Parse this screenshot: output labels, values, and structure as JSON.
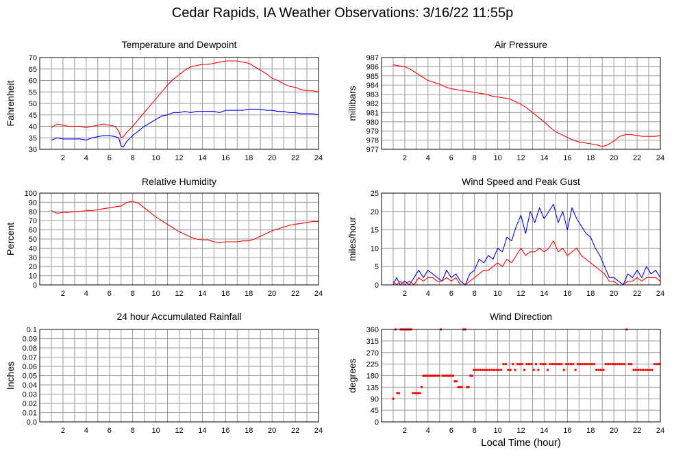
{
  "page": {
    "title": "Cedar Rapids, IA Weather Observations: 3/16/22 11:55p",
    "x_axis_label": "Local Time (hour)"
  },
  "colors": {
    "red": "#ff0000",
    "blue": "#0000ff",
    "grid": "#999999",
    "frame": "#000000"
  },
  "chart_data": [
    {
      "id": "temp",
      "type": "line",
      "title": "Temperature and Dewpoint",
      "ylabel": "Fahrenheit",
      "xlim": [
        0,
        24
      ],
      "ylim": [
        30,
        70
      ],
      "xticks": [
        2,
        4,
        6,
        8,
        10,
        12,
        14,
        16,
        18,
        20,
        22,
        24
      ],
      "yticks": [
        30,
        35,
        40,
        45,
        50,
        55,
        60,
        65,
        70
      ],
      "grid": true,
      "series": [
        {
          "color": "#ff0000",
          "x": [
            1,
            1.5,
            2,
            2.5,
            3,
            3.5,
            4,
            4.5,
            5,
            5.5,
            6,
            6.5,
            6.8,
            7,
            7.2,
            7.5,
            8,
            8.5,
            9,
            9.5,
            10,
            10.5,
            11,
            11.5,
            12,
            12.5,
            13,
            13.5,
            14,
            14.5,
            15,
            15.5,
            16,
            16.5,
            17,
            17.5,
            18,
            18.5,
            19,
            19.5,
            20,
            20.5,
            21,
            21.5,
            22,
            22.5,
            23,
            23.5,
            24
          ],
          "y": [
            39.5,
            41,
            40.5,
            40,
            40,
            40,
            39.5,
            40,
            40.5,
            41,
            40.5,
            40,
            38,
            35,
            35.5,
            37.5,
            40,
            43,
            46,
            49,
            52,
            55,
            58,
            60.5,
            62.5,
            64.5,
            66,
            66.5,
            67,
            67,
            67.5,
            68,
            68.5,
            68.5,
            68.5,
            68,
            67.5,
            66,
            64.5,
            63,
            61,
            60,
            58.5,
            57.5,
            57,
            56,
            55.5,
            55.5,
            55
          ]
        },
        {
          "color": "#0000ff",
          "x": [
            1,
            1.5,
            2,
            2.5,
            3,
            3.5,
            4,
            4.5,
            5,
            5.5,
            6,
            6.5,
            6.8,
            7,
            7.2,
            7.5,
            8,
            8.5,
            9,
            9.5,
            10,
            10.5,
            11,
            11.5,
            12,
            12.5,
            13,
            13.5,
            14,
            14.5,
            15,
            15.5,
            16,
            16.5,
            17,
            17.5,
            18,
            18.5,
            19,
            19.5,
            20,
            20.5,
            21,
            21.5,
            22,
            22.5,
            23,
            23.5,
            24
          ],
          "y": [
            34,
            35,
            34.5,
            34.5,
            34.5,
            34.5,
            34,
            35,
            35.5,
            36,
            36,
            35.5,
            35,
            31.5,
            31,
            33.5,
            36,
            38,
            40,
            41.5,
            43,
            44.5,
            45,
            46,
            46,
            46.5,
            46,
            46.5,
            46.5,
            46.5,
            46.5,
            46,
            47,
            47,
            47,
            47,
            47.5,
            47.5,
            47.5,
            47,
            47,
            46.5,
            46.5,
            46,
            46,
            45.5,
            45.5,
            45.5,
            45
          ]
        }
      ]
    },
    {
      "id": "pressure",
      "type": "line",
      "title": "Air Pressure",
      "ylabel": "millibars",
      "xlim": [
        0,
        24
      ],
      "ylim": [
        977,
        987
      ],
      "xticks": [
        2,
        4,
        6,
        8,
        10,
        12,
        14,
        16,
        18,
        20,
        22,
        24
      ],
      "yticks": [
        977,
        978,
        979,
        980,
        981,
        982,
        983,
        984,
        985,
        986,
        987
      ],
      "grid": true,
      "series": [
        {
          "color": "#ff0000",
          "x": [
            1,
            1.5,
            2,
            2.5,
            3,
            3.5,
            4,
            4.5,
            5,
            5.5,
            6,
            6.5,
            7,
            7.5,
            8,
            8.5,
            9,
            9.5,
            10,
            10.5,
            11,
            11.5,
            12,
            12.5,
            13,
            13.5,
            14,
            14.5,
            15,
            15.5,
            16,
            16.5,
            17,
            17.5,
            18,
            18.5,
            19,
            19.5,
            20,
            20.5,
            21,
            21.5,
            22,
            22.5,
            23,
            23.5,
            24
          ],
          "y": [
            986.2,
            986.1,
            986.0,
            985.7,
            985.3,
            984.9,
            984.5,
            984.3,
            984.1,
            983.8,
            983.6,
            983.5,
            983.4,
            983.3,
            983.2,
            983.1,
            983.0,
            982.8,
            982.7,
            982.6,
            982.5,
            982.2,
            981.9,
            981.5,
            981.0,
            980.5,
            980.0,
            979.4,
            978.9,
            978.6,
            978.3,
            978.0,
            977.8,
            977.7,
            977.6,
            977.5,
            977.3,
            977.5,
            977.9,
            978.4,
            978.6,
            978.6,
            978.5,
            978.4,
            978.4,
            978.4,
            978.5
          ]
        }
      ]
    },
    {
      "id": "humidity",
      "type": "line",
      "title": "Relative Humidity",
      "ylabel": "Percent",
      "xlim": [
        0,
        24
      ],
      "ylim": [
        0,
        100
      ],
      "xticks": [
        2,
        4,
        6,
        8,
        10,
        12,
        14,
        16,
        18,
        20,
        22,
        24
      ],
      "yticks": [
        0,
        10,
        20,
        30,
        40,
        50,
        60,
        70,
        80,
        90,
        100
      ],
      "grid": true,
      "series": [
        {
          "color": "#ff0000",
          "x": [
            1,
            1.5,
            2,
            2.5,
            3,
            3.5,
            4,
            4.5,
            5,
            5.5,
            6,
            6.5,
            7,
            7.5,
            8,
            8.5,
            9,
            9.5,
            10,
            10.5,
            11,
            11.5,
            12,
            12.5,
            13,
            13.5,
            14,
            14.5,
            15,
            15.5,
            16,
            16.5,
            17,
            17.5,
            18,
            18.5,
            19,
            19.5,
            20,
            20.5,
            21,
            21.5,
            22,
            22.5,
            23,
            23.5,
            24
          ],
          "y": [
            81,
            78,
            79,
            79,
            80,
            80,
            81,
            81,
            82,
            83,
            84,
            85,
            86,
            90,
            91,
            89,
            84,
            79,
            74,
            70,
            66,
            62,
            58,
            55,
            52,
            50,
            49,
            49,
            47,
            46,
            47,
            47,
            47,
            48,
            48,
            50,
            53,
            56,
            59,
            61,
            63,
            65,
            66,
            67,
            68,
            69,
            69
          ]
        }
      ]
    },
    {
      "id": "wind",
      "type": "line",
      "title": "Wind Speed and Peak Gust",
      "ylabel": "miles/hour",
      "xlim": [
        0,
        24
      ],
      "ylim": [
        0,
        25
      ],
      "xticks": [
        2,
        4,
        6,
        8,
        10,
        12,
        14,
        16,
        18,
        20,
        22,
        24
      ],
      "yticks": [
        0,
        5,
        10,
        15,
        20,
        25
      ],
      "grid": true,
      "series": [
        {
          "color": "#0000ff",
          "x": [
            1,
            1.3,
            1.6,
            2,
            2.4,
            2.8,
            3.2,
            3.6,
            4,
            4.4,
            4.8,
            5.2,
            5.6,
            6,
            6.4,
            6.8,
            7.2,
            7.6,
            8,
            8.4,
            8.8,
            9.2,
            9.6,
            10,
            10.4,
            10.8,
            11.2,
            11.6,
            12,
            12.4,
            12.8,
            13.2,
            13.6,
            14,
            14.4,
            14.8,
            15.2,
            15.6,
            16,
            16.4,
            16.8,
            17.2,
            17.6,
            18,
            18.4,
            18.8,
            19.2,
            19.6,
            20,
            20.4,
            20.8,
            21.2,
            21.6,
            22,
            22.4,
            22.8,
            23.2,
            23.6,
            24
          ],
          "y": [
            0,
            2,
            0,
            1,
            0,
            2,
            4,
            2,
            4,
            3,
            2,
            1,
            4,
            2,
            3,
            1,
            0,
            3,
            4,
            7,
            6,
            8,
            7,
            10,
            9,
            13,
            12,
            16,
            19,
            14,
            20,
            17,
            21,
            18,
            20,
            22,
            17,
            20,
            15,
            21,
            18,
            16,
            14,
            13,
            10,
            8,
            5,
            2,
            2,
            1,
            0,
            3,
            2,
            4,
            2,
            5,
            3,
            4,
            2
          ]
        },
        {
          "color": "#ff0000",
          "x": [
            1,
            1.3,
            1.6,
            2,
            2.4,
            2.8,
            3.2,
            3.6,
            4,
            4.4,
            4.8,
            5.2,
            5.6,
            6,
            6.4,
            6.8,
            7.2,
            7.6,
            8,
            8.4,
            8.8,
            9.2,
            9.6,
            10,
            10.4,
            10.8,
            11.2,
            11.6,
            12,
            12.4,
            12.8,
            13.2,
            13.6,
            14,
            14.4,
            14.8,
            15.2,
            15.6,
            16,
            16.4,
            16.8,
            17.2,
            17.6,
            18,
            18.4,
            18.8,
            19.2,
            19.6,
            20,
            20.4,
            20.8,
            21.2,
            21.6,
            22,
            22.4,
            22.8,
            23.2,
            23.6,
            24
          ],
          "y": [
            1,
            0,
            1,
            0,
            1,
            0,
            2,
            1,
            2,
            2,
            1,
            1,
            2,
            1,
            2,
            0,
            0,
            1,
            2,
            3,
            4,
            4,
            5,
            6,
            5,
            7,
            6,
            8,
            10,
            8,
            9,
            9,
            10,
            9,
            10,
            12,
            9,
            10,
            8,
            9,
            10,
            8,
            7,
            6,
            5,
            4,
            3,
            1,
            1,
            0,
            0,
            1,
            1,
            2,
            1,
            2,
            2,
            2,
            1
          ]
        }
      ]
    },
    {
      "id": "rain",
      "type": "line",
      "title": "24 hour Accumulated Rainfall",
      "ylabel": "Inches",
      "xlim": [
        0,
        24
      ],
      "ylim": [
        0,
        0.1
      ],
      "xticks": [
        2,
        4,
        6,
        8,
        10,
        12,
        14,
        16,
        18,
        20,
        22,
        24
      ],
      "yticks": [
        0.0,
        0.01,
        0.02,
        0.03,
        0.04,
        0.05,
        0.06,
        0.07,
        0.08,
        0.09,
        0.1
      ],
      "ytick_labels": [
        "0.0",
        "0.01",
        "0.02",
        "0.03",
        "0.04",
        "0.05",
        "0.06",
        "0.07",
        "0.08",
        "0.09",
        "0.1"
      ],
      "grid": true,
      "series": [
        {
          "color": "#ff0000",
          "x": [
            1,
            24
          ],
          "y": [
            0,
            0
          ]
        }
      ]
    },
    {
      "id": "direction",
      "type": "scatter",
      "title": "Wind Direction",
      "ylabel": "degrees",
      "xlabel": "Local Time (hour)",
      "xlim": [
        0,
        24
      ],
      "ylim": [
        0,
        360
      ],
      "xticks": [
        2,
        4,
        6,
        8,
        10,
        12,
        14,
        16,
        18,
        20,
        22,
        24
      ],
      "yticks": [
        0,
        45,
        90,
        135,
        180,
        225,
        270,
        315,
        360
      ],
      "grid": true,
      "series": [
        {
          "color": "#ff0000",
          "x": [
            1.0,
            1.2,
            1.35,
            1.5,
            1.65,
            1.8,
            1.95,
            2.1,
            2.25,
            2.4,
            2.55,
            2.7,
            2.85,
            3.0,
            3.15,
            3.3,
            3.45,
            3.6,
            3.75,
            3.9,
            4.05,
            4.2,
            4.35,
            4.5,
            4.65,
            4.8,
            4.95,
            5.1,
            5.25,
            5.4,
            5.55,
            5.7,
            5.85,
            6.0,
            6.15,
            6.3,
            6.45,
            6.6,
            6.75,
            6.9,
            7.05,
            7.2,
            7.35,
            7.5,
            7.65,
            7.8,
            7.95,
            8.1,
            8.3,
            8.5,
            8.7,
            8.9,
            9.1,
            9.3,
            9.5,
            9.7,
            9.9,
            10.1,
            10.3,
            10.5,
            10.7,
            10.9,
            11.1,
            11.3,
            11.5,
            11.7,
            11.9,
            12.1,
            12.3,
            12.5,
            12.7,
            12.9,
            13.1,
            13.3,
            13.5,
            13.7,
            13.9,
            14.1,
            14.3,
            14.5,
            14.7,
            14.9,
            15.1,
            15.3,
            15.5,
            15.7,
            15.9,
            16.1,
            16.3,
            16.5,
            16.7,
            16.9,
            17.1,
            17.3,
            17.5,
            17.7,
            17.9,
            18.1,
            18.3,
            18.5,
            18.7,
            18.9,
            19.1,
            19.3,
            19.5,
            19.7,
            19.9,
            20.1,
            20.3,
            20.5,
            20.7,
            20.9,
            21.1,
            21.3,
            21.5,
            21.7,
            21.9,
            22.1,
            22.3,
            22.5,
            22.7,
            22.9,
            23.1,
            23.3,
            23.5,
            23.7,
            23.9
          ],
          "y": [
            90,
            360,
            112,
            112,
            360,
            360,
            360,
            360,
            360,
            360,
            360,
            112,
            112,
            112,
            112,
            112,
            135,
            180,
            180,
            180,
            180,
            180,
            180,
            180,
            180,
            180,
            180,
            360,
            180,
            180,
            180,
            180,
            180,
            180,
            180,
            158,
            158,
            135,
            135,
            135,
            360,
            360,
            135,
            135,
            180,
            180,
            202,
            202,
            202,
            202,
            202,
            202,
            202,
            202,
            202,
            202,
            202,
            202,
            202,
            225,
            225,
            202,
            202,
            225,
            202,
            225,
            225,
            225,
            202,
            225,
            225,
            225,
            202,
            225,
            202,
            225,
            225,
            225,
            202,
            225,
            225,
            225,
            225,
            225,
            225,
            202,
            225,
            225,
            225,
            225,
            202,
            225,
            225,
            225,
            225,
            225,
            225,
            225,
            225,
            202,
            202,
            202,
            202,
            225,
            225,
            225,
            225,
            225,
            225,
            225,
            225,
            225,
            360,
            225,
            225,
            202,
            202,
            202,
            202,
            202,
            202,
            202,
            202,
            202,
            225,
            225,
            225
          ]
        }
      ]
    }
  ]
}
